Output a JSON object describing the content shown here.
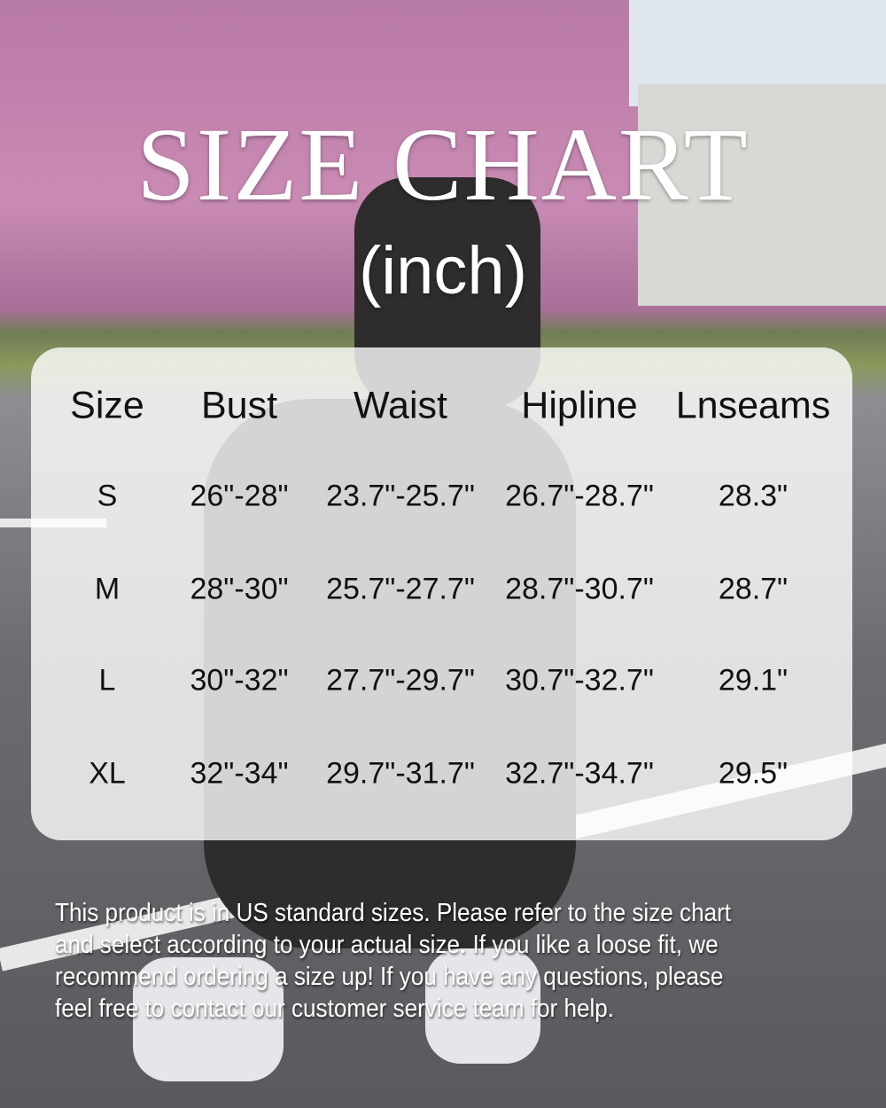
{
  "title": "SIZE CHART",
  "subtitle": "(inch)",
  "table": {
    "headers": [
      "Size",
      "Bust",
      "Waist",
      "Hipline",
      "Lnseams"
    ],
    "rows": [
      [
        "S",
        "26\"-28\"",
        "23.7\"-25.7\"",
        "26.7\"-28.7\"",
        "28.3\""
      ],
      [
        "M",
        "28\"-30\"",
        "25.7\"-27.7\"",
        "28.7\"-30.7\"",
        "28.7\""
      ],
      [
        "L",
        "30\"-32\"",
        "27.7\"-29.7\"",
        "30.7\"-32.7\"",
        "29.1\""
      ],
      [
        "XL",
        "32\"-34\"",
        "29.7\"-31.7\"",
        "32.7\"-34.7\"",
        "29.5\""
      ]
    ]
  },
  "note_lines": [
    "This product is in US standard sizes. Please refer to the size chart",
    "and select according to your actual size. If you like a loose fit, we",
    "recommend ordering a size up! If you have any questions, please",
    "feel free to contact our customer service team for help."
  ]
}
